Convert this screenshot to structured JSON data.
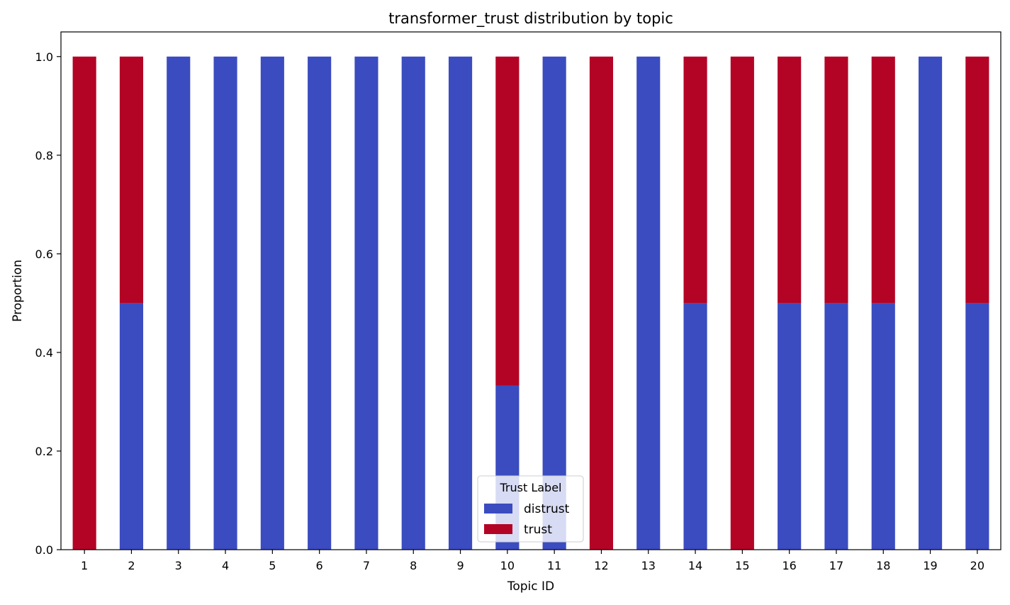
{
  "chart_data": {
    "type": "bar",
    "stacked": true,
    "title": "transformer_trust distribution by topic",
    "xlabel": "Topic ID",
    "ylabel": "Proportion",
    "ylim": [
      0,
      1.05
    ],
    "y_ticks": [
      "0.0",
      "0.2",
      "0.4",
      "0.6",
      "0.8",
      "1.0"
    ],
    "categories": [
      "1",
      "2",
      "3",
      "4",
      "5",
      "6",
      "7",
      "8",
      "9",
      "10",
      "11",
      "12",
      "13",
      "14",
      "15",
      "16",
      "17",
      "18",
      "19",
      "20"
    ],
    "series": [
      {
        "name": "distrust",
        "color": "#3b4cc0",
        "values": [
          0,
          0.5,
          1,
          1,
          1,
          1,
          1,
          1,
          1,
          0.333,
          1,
          0,
          1,
          0.5,
          0,
          0.5,
          0.5,
          0.5,
          1,
          0.5
        ]
      },
      {
        "name": "trust",
        "color": "#b40426",
        "values": [
          1,
          0.5,
          0,
          0,
          0,
          0,
          0,
          0,
          0,
          0.667,
          0,
          1,
          0,
          0.5,
          1,
          0.5,
          0.5,
          0.5,
          0,
          0.5
        ]
      }
    ],
    "legend": {
      "title": "Trust Label",
      "placement": "bottom-center"
    },
    "grid": false
  }
}
